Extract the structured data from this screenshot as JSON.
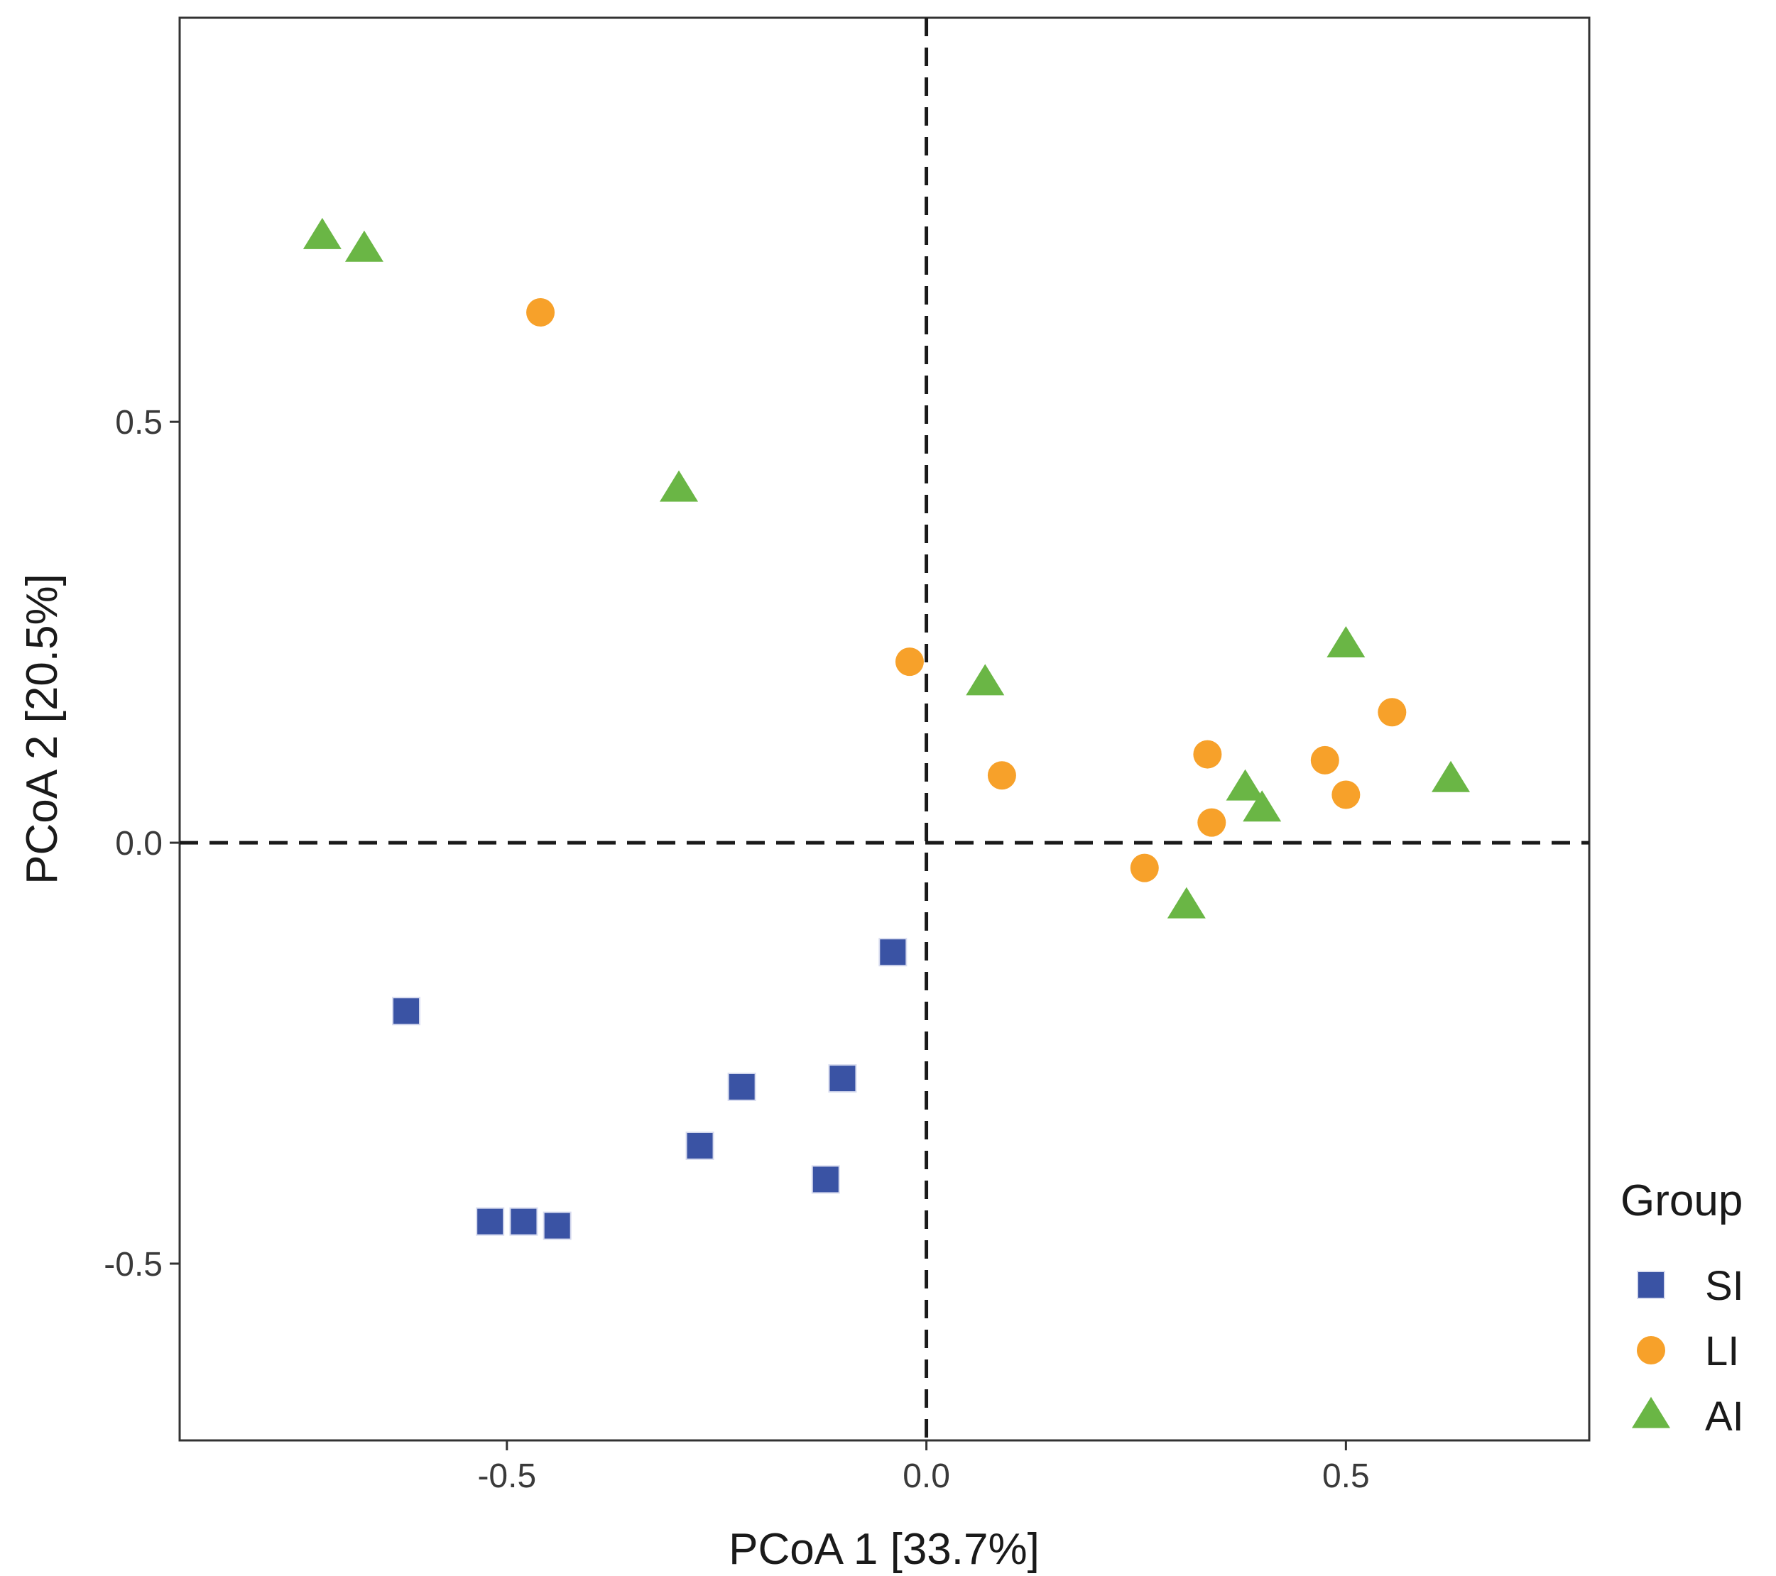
{
  "chart_data": {
    "type": "scatter",
    "title": "",
    "xlabel": "PCoA 1 [33.7%]",
    "ylabel": "PCoA 2 [20.5%]",
    "xlim": [
      -0.89,
      0.79
    ],
    "ylim": [
      -0.71,
      0.98
    ],
    "xticks": [
      {
        "value": -0.5,
        "label": "-0.5"
      },
      {
        "value": 0.0,
        "label": "0.0"
      },
      {
        "value": 0.5,
        "label": "0.5"
      }
    ],
    "yticks": [
      {
        "value": -0.5,
        "label": "-0.5"
      },
      {
        "value": 0.0,
        "label": "0.0"
      },
      {
        "value": 0.5,
        "label": "0.5"
      }
    ],
    "reference_lines": {
      "x": 0.0,
      "y": 0.0,
      "style": "dashed"
    },
    "grid": false,
    "legend": {
      "title": "Group",
      "placement": "right"
    },
    "series": [
      {
        "name": "SI",
        "shape": "square",
        "color": "#3a53a4",
        "points": [
          [
            -0.04,
            -0.13
          ],
          [
            -0.62,
            -0.2
          ],
          [
            -0.1,
            -0.28
          ],
          [
            -0.22,
            -0.29
          ],
          [
            -0.27,
            -0.36
          ],
          [
            -0.12,
            -0.4
          ],
          [
            -0.52,
            -0.45
          ],
          [
            -0.48,
            -0.45
          ],
          [
            -0.44,
            -0.455
          ]
        ]
      },
      {
        "name": "LI",
        "shape": "circle",
        "color": "#f7a12a",
        "points": [
          [
            -0.46,
            0.63
          ],
          [
            -0.02,
            0.215
          ],
          [
            0.09,
            0.08
          ],
          [
            0.335,
            0.105
          ],
          [
            0.475,
            0.098
          ],
          [
            0.555,
            0.155
          ],
          [
            0.5,
            0.057
          ],
          [
            0.34,
            0.024
          ],
          [
            0.26,
            -0.03
          ]
        ]
      },
      {
        "name": "AI",
        "shape": "triangle",
        "color": "#6ab645",
        "points": [
          [
            -0.72,
            0.72
          ],
          [
            -0.67,
            0.705
          ],
          [
            -0.295,
            0.42
          ],
          [
            0.07,
            0.19
          ],
          [
            0.5,
            0.235
          ],
          [
            0.38,
            0.065
          ],
          [
            0.4,
            0.04
          ],
          [
            0.625,
            0.075
          ],
          [
            0.31,
            -0.075
          ]
        ]
      }
    ]
  }
}
